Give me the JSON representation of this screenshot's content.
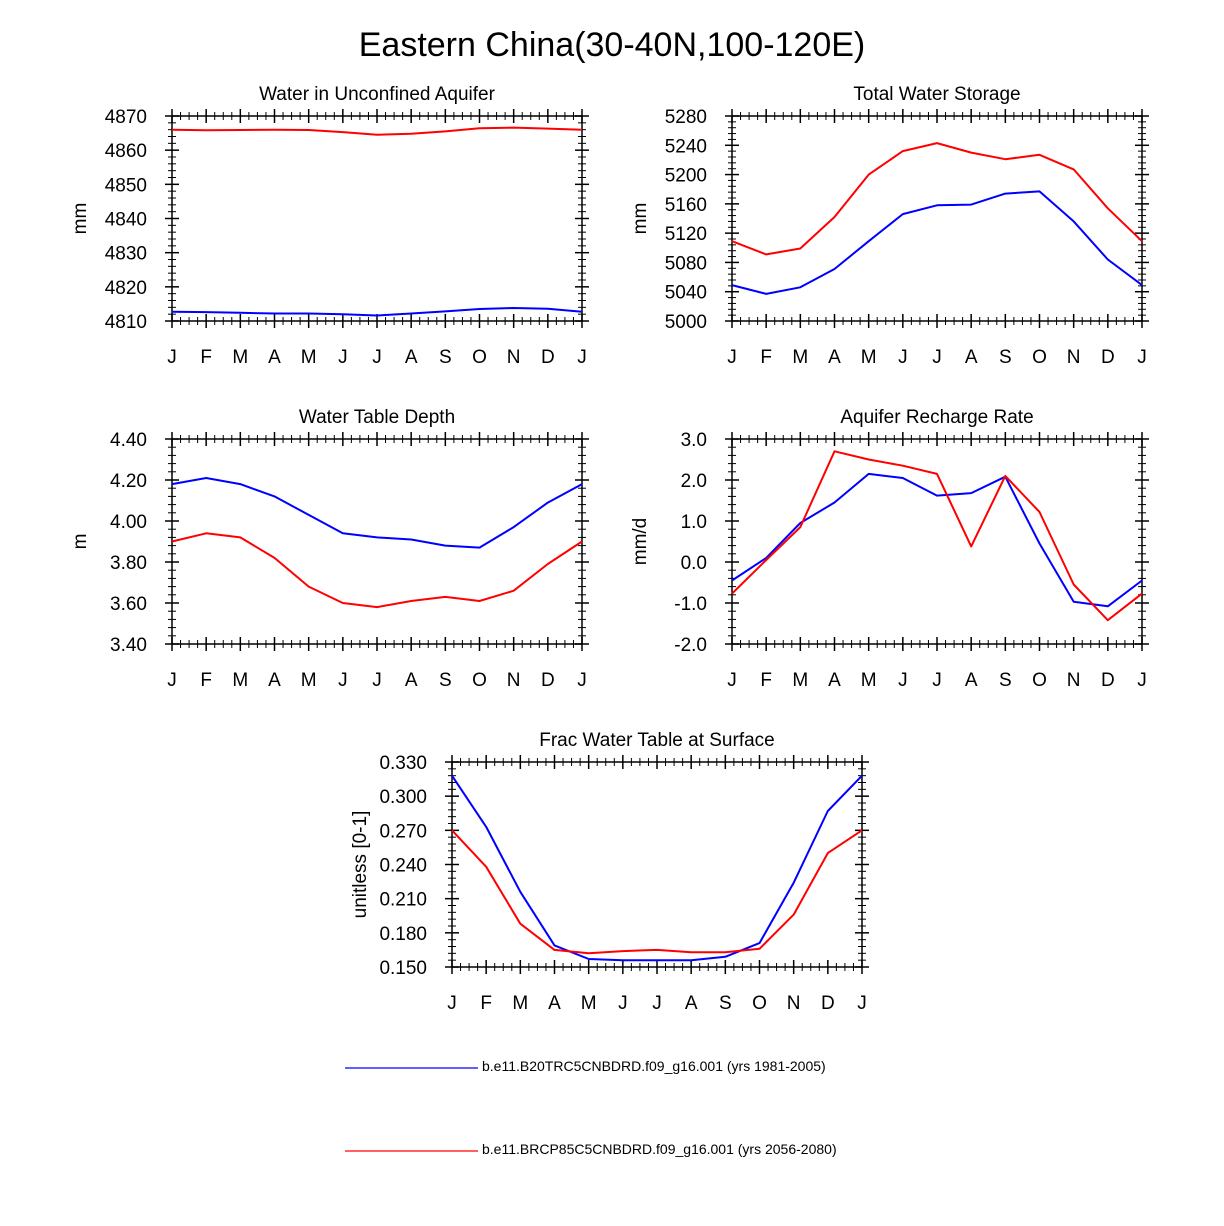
{
  "figure_title": "Eastern China(30-40N,100-120E)",
  "months": [
    "J",
    "F",
    "M",
    "A",
    "M",
    "J",
    "J",
    "A",
    "S",
    "O",
    "N",
    "D",
    "J"
  ],
  "colors": {
    "blue": "#0000ff",
    "red": "#ff0000",
    "axis": "#000000"
  },
  "legend": [
    {
      "color": "#0000ff",
      "label": "b.e11.B20TRC5CNBDRD.f09_g16.001 (yrs 1981-2005)"
    },
    {
      "color": "#ff0000",
      "label": "b.e11.BRCP85C5CNBDRD.f09_g16.001 (yrs 2056-2080)"
    }
  ],
  "chart_data": [
    {
      "type": "line",
      "title": "Water in Unconfined Aquifer",
      "xlabel": "",
      "ylabel": "mm",
      "ylim": [
        4810,
        4870
      ],
      "yticks": [
        4810,
        4820,
        4830,
        4840,
        4850,
        4860,
        4870
      ],
      "ytick_labels": [
        "4810",
        "4820",
        "4830",
        "4840",
        "4850",
        "4860",
        "4870"
      ],
      "categories": [
        "J",
        "F",
        "M",
        "A",
        "M",
        "J",
        "J",
        "A",
        "S",
        "O",
        "N",
        "D",
        "J"
      ],
      "series": [
        {
          "name": "b.e11.B20TRC5CNBDRD.f09_g16.001 (yrs 1981-2005)",
          "color": "#0000ff",
          "values": [
            4812.7,
            4812.6,
            4812.4,
            4812.2,
            4812.2,
            4812.0,
            4811.6,
            4812.2,
            4812.8,
            4813.5,
            4813.8,
            4813.6,
            4812.7
          ]
        },
        {
          "name": "b.e11.BRCP85C5CNBDRD.f09_g16.001 (yrs 2056-2080)",
          "color": "#ff0000",
          "values": [
            4866.0,
            4865.8,
            4865.9,
            4866.0,
            4865.9,
            4865.3,
            4864.5,
            4864.8,
            4865.5,
            4866.4,
            4866.6,
            4866.3,
            4866.0
          ]
        }
      ]
    },
    {
      "type": "line",
      "title": "Total Water Storage",
      "xlabel": "",
      "ylabel": "mm",
      "ylim": [
        5000,
        5280
      ],
      "yticks": [
        5000,
        5040,
        5080,
        5120,
        5160,
        5200,
        5240,
        5280
      ],
      "ytick_labels": [
        "5000",
        "5040",
        "5080",
        "5120",
        "5160",
        "5200",
        "5240",
        "5280"
      ],
      "categories": [
        "J",
        "F",
        "M",
        "A",
        "M",
        "J",
        "J",
        "A",
        "S",
        "O",
        "N",
        "D",
        "J"
      ],
      "series": [
        {
          "name": "b.e11.B20TRC5CNBDRD.f09_g16.001 (yrs 1981-2005)",
          "color": "#0000ff",
          "values": [
            5049,
            5037,
            5046,
            5071,
            5109,
            5146,
            5158,
            5159,
            5174,
            5177,
            5136,
            5084,
            5049
          ]
        },
        {
          "name": "b.e11.BRCP85C5CNBDRD.f09_g16.001 (yrs 2056-2080)",
          "color": "#ff0000",
          "values": [
            5109,
            5091,
            5099,
            5142,
            5200,
            5232,
            5243,
            5230,
            5221,
            5227,
            5207,
            5154,
            5109
          ]
        }
      ]
    },
    {
      "type": "line",
      "title": "Water Table Depth",
      "xlabel": "",
      "ylabel": "m",
      "ylim": [
        3.4,
        4.4
      ],
      "yticks": [
        3.4,
        3.6,
        3.8,
        4.0,
        4.2,
        4.4
      ],
      "ytick_labels": [
        "3.40",
        "3.60",
        "3.80",
        "4.00",
        "4.20",
        "4.40"
      ],
      "categories": [
        "J",
        "F",
        "M",
        "A",
        "M",
        "J",
        "J",
        "A",
        "S",
        "O",
        "N",
        "D",
        "J"
      ],
      "series": [
        {
          "name": "b.e11.B20TRC5CNBDRD.f09_g16.001 (yrs 1981-2005)",
          "color": "#0000ff",
          "values": [
            4.18,
            4.21,
            4.18,
            4.12,
            4.03,
            3.94,
            3.92,
            3.91,
            3.88,
            3.87,
            3.97,
            4.09,
            4.18
          ]
        },
        {
          "name": "b.e11.BRCP85C5CNBDRD.f09_g16.001 (yrs 2056-2080)",
          "color": "#ff0000",
          "values": [
            3.9,
            3.94,
            3.92,
            3.82,
            3.68,
            3.6,
            3.58,
            3.61,
            3.63,
            3.61,
            3.66,
            3.79,
            3.9
          ]
        }
      ]
    },
    {
      "type": "line",
      "title": "Aquifer Recharge Rate",
      "xlabel": "",
      "ylabel": "mm/d",
      "ylim": [
        -2.0,
        3.0
      ],
      "yticks": [
        -2.0,
        -1.0,
        0.0,
        1.0,
        2.0,
        3.0
      ],
      "ytick_labels": [
        "-2.0",
        "-1.0",
        "0.0",
        "1.0",
        "2.0",
        "3.0"
      ],
      "categories": [
        "J",
        "F",
        "M",
        "A",
        "M",
        "J",
        "J",
        "A",
        "S",
        "O",
        "N",
        "D",
        "J"
      ],
      "series": [
        {
          "name": "b.e11.B20TRC5CNBDRD.f09_g16.001 (yrs 1981-2005)",
          "color": "#0000ff",
          "values": [
            -0.45,
            0.1,
            0.95,
            1.45,
            2.15,
            2.05,
            1.62,
            1.68,
            2.08,
            0.45,
            -0.97,
            -1.08,
            -0.45
          ]
        },
        {
          "name": "b.e11.BRCP85C5CNBDRD.f09_g16.001 (yrs 2056-2080)",
          "color": "#ff0000",
          "values": [
            -0.77,
            0.05,
            0.85,
            2.7,
            2.5,
            2.35,
            2.15,
            0.38,
            2.1,
            1.22,
            -0.55,
            -1.42,
            -0.77
          ]
        }
      ]
    },
    {
      "type": "line",
      "title": "Frac Water Table at Surface",
      "xlabel": "",
      "ylabel": "unitless [0-1]",
      "ylim": [
        0.15,
        0.33
      ],
      "yticks": [
        0.15,
        0.18,
        0.21,
        0.24,
        0.27,
        0.3,
        0.33
      ],
      "ytick_labels": [
        "0.150",
        "0.180",
        "0.210",
        "0.240",
        "0.270",
        "0.300",
        "0.330"
      ],
      "categories": [
        "J",
        "F",
        "M",
        "A",
        "M",
        "J",
        "J",
        "A",
        "S",
        "O",
        "N",
        "D",
        "J"
      ],
      "series": [
        {
          "name": "b.e11.B20TRC5CNBDRD.f09_g16.001 (yrs 1981-2005)",
          "color": "#0000ff",
          "values": [
            0.318,
            0.273,
            0.216,
            0.169,
            0.157,
            0.156,
            0.156,
            0.156,
            0.159,
            0.171,
            0.224,
            0.287,
            0.318
          ]
        },
        {
          "name": "b.e11.BRCP85C5CNBDRD.f09_g16.001 (yrs 2056-2080)",
          "color": "#ff0000",
          "values": [
            0.27,
            0.238,
            0.188,
            0.165,
            0.162,
            0.164,
            0.165,
            0.163,
            0.163,
            0.166,
            0.196,
            0.25,
            0.27
          ]
        }
      ]
    }
  ]
}
